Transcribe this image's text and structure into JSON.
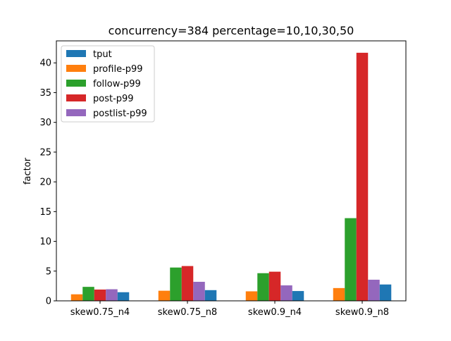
{
  "chart_data": {
    "type": "bar",
    "title": "concurrency=384 percentage=10,10,30,50",
    "xlabel": "",
    "ylabel": "factor",
    "ylim": [
      0,
      43.7
    ],
    "yticks": [
      0,
      5,
      10,
      15,
      20,
      25,
      30,
      35,
      40
    ],
    "grid": false,
    "legend_position": "upper-left",
    "categories": [
      "skew0.75_n4",
      "skew0.75_n8",
      "skew0.9_n4",
      "skew0.9_n8"
    ],
    "series": [
      {
        "name": "tput",
        "color": "#1f77b4",
        "values": [
          1.45,
          1.8,
          1.65,
          2.75
        ]
      },
      {
        "name": "profile-p99",
        "color": "#ff7f0e",
        "values": [
          1.1,
          1.7,
          1.6,
          2.15
        ]
      },
      {
        "name": "follow-p99",
        "color": "#2ca02c",
        "values": [
          2.35,
          5.6,
          4.65,
          13.9
        ]
      },
      {
        "name": "post-p99",
        "color": "#d62728",
        "values": [
          1.9,
          5.85,
          4.9,
          41.7
        ]
      },
      {
        "name": "postlist-p99",
        "color": "#9467bd",
        "values": [
          1.95,
          3.2,
          2.6,
          3.55
        ]
      }
    ],
    "bar_order": [
      "profile-p99",
      "follow-p99",
      "post-p99",
      "postlist-p99",
      "tput"
    ]
  }
}
